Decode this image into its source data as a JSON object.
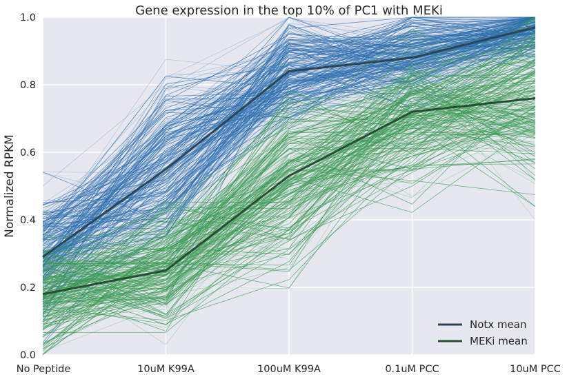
{
  "chart_data": {
    "type": "line",
    "title": "Gene expression in the top 10% of PC1 with MEKi",
    "xlabel": "",
    "ylabel": "Normalized RPKM",
    "categories": [
      "No Peptide",
      "10uM K99A",
      "100uM K99A",
      "0.1uM PCC",
      "10uM PCC"
    ],
    "ylim": [
      0,
      1.0
    ],
    "yticks": [
      "0.0",
      "0.2",
      "0.4",
      "0.6",
      "0.8",
      "1.0"
    ],
    "grid": true,
    "legend_position": "bottom-right",
    "series": [
      {
        "name": "Notx mean",
        "values": [
          0.29,
          0.55,
          0.84,
          0.88,
          0.97
        ],
        "color": "#2b4552"
      },
      {
        "name": "MEKi mean",
        "values": [
          0.18,
          0.25,
          0.53,
          0.72,
          0.76
        ],
        "color": "#274d33"
      }
    ],
    "background_lines": {
      "notx_color": "#2e6fb0",
      "meki_color": "#3a9a52",
      "description_count_per_group": 220
    },
    "colors": {
      "plot_background": "#e7e7f0",
      "grid": "#ffffff"
    }
  }
}
